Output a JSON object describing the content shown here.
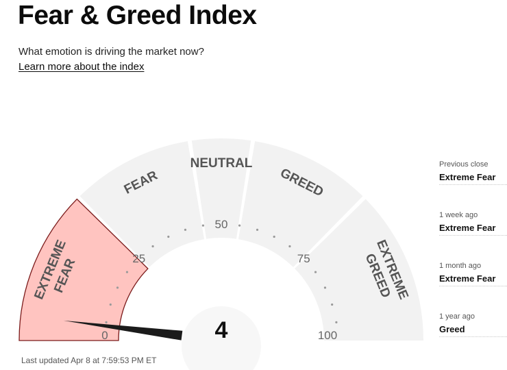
{
  "header": {
    "title": "Fear & Greed Index",
    "subtitle": "What emotion is driving the market now?",
    "learn_link": "Learn more about the index"
  },
  "gauge": {
    "value": 4,
    "value_text": "4",
    "min": 0,
    "max": 100,
    "current_rating": "Extreme Fear",
    "segments": [
      {
        "label": "EXTREME FEAR",
        "lines": [
          "EXTREME",
          "FEAR"
        ],
        "from": 0,
        "to": 25,
        "active": true
      },
      {
        "label": "FEAR",
        "lines": [
          "FEAR"
        ],
        "from": 25,
        "to": 45,
        "active": false
      },
      {
        "label": "NEUTRAL",
        "lines": [
          "NEUTRAL"
        ],
        "from": 45,
        "to": 55,
        "active": false
      },
      {
        "label": "GREED",
        "lines": [
          "GREED"
        ],
        "from": 55,
        "to": 75,
        "active": false
      },
      {
        "label": "EXTREME GREED",
        "lines": [
          "EXTREME",
          "GREED"
        ],
        "from": 75,
        "to": 100,
        "active": false
      }
    ],
    "scale_labels": [
      {
        "value": 0,
        "text": "0"
      },
      {
        "value": 25,
        "text": "25"
      },
      {
        "value": 50,
        "text": "50"
      },
      {
        "value": 75,
        "text": "75"
      },
      {
        "value": 100,
        "text": "100"
      }
    ],
    "colors": {
      "segment": "#f2f2f2",
      "active_fill": "#ffc4c0",
      "active_stroke": "#7a1a1a",
      "needle": "#1b1b1b",
      "tick": "#9a9a9a",
      "scale_text": "#666666"
    }
  },
  "history": [
    {
      "label": "Previous close",
      "value": "Extreme Fear"
    },
    {
      "label": "1 week ago",
      "value": "Extreme Fear"
    },
    {
      "label": "1 month ago",
      "value": "Extreme Fear"
    },
    {
      "label": "1 year ago",
      "value": "Greed"
    }
  ],
  "footer": {
    "last_updated": "Last updated Apr 8 at 7:59:53 PM ET"
  }
}
